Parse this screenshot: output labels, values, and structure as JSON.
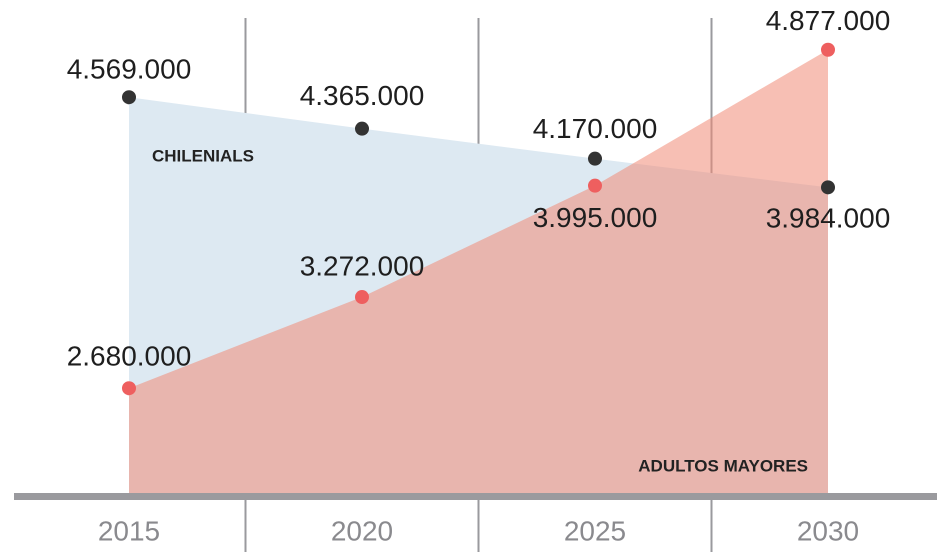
{
  "chart_data": {
    "type": "area",
    "categories": [
      "2015",
      "2020",
      "2025",
      "2030"
    ],
    "series": [
      {
        "name": "CHILENIALS",
        "color": "#dde9f2",
        "point_color": "#333333",
        "values": [
          4569000,
          4365000,
          4170000,
          3984000
        ],
        "value_labels": [
          "4.569.000",
          "4.365.000",
          "4.170.000",
          "3.984.000"
        ]
      },
      {
        "name": "ADULTOS MAYORES",
        "color": "#f08a76",
        "point_color": "#ee5f5f",
        "values": [
          2680000,
          3272000,
          3995000,
          4877000
        ],
        "value_labels": [
          "2.680.000",
          "3.272.000",
          "3.995.000",
          "4.877.000"
        ]
      }
    ],
    "ylim": [
      2000000,
      5200000
    ]
  }
}
